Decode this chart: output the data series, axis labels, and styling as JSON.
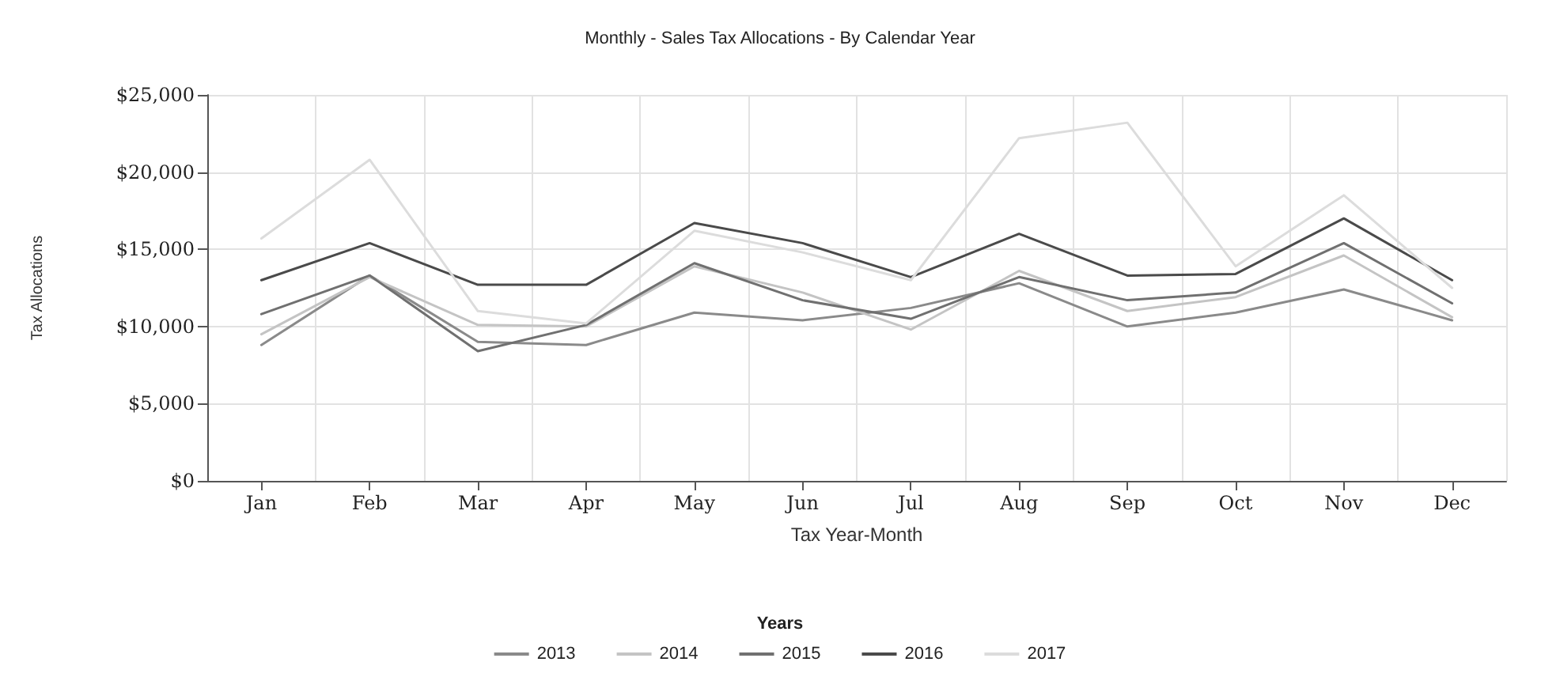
{
  "chart_data": {
    "type": "line",
    "title": "Monthly - Sales Tax Allocations - By Calendar Year",
    "xlabel": "Tax Year-Month",
    "ylabel": "Tax Allocations",
    "legend_title": "Years",
    "categories": [
      "Jan",
      "Feb",
      "Mar",
      "Apr",
      "May",
      "Jun",
      "Jul",
      "Aug",
      "Sep",
      "Oct",
      "Nov",
      "Dec"
    ],
    "series": [
      {
        "name": "2013",
        "color": "#8a8a8a",
        "values": [
          8800,
          13300,
          9000,
          8800,
          10900,
          10400,
          11200,
          12800,
          10000,
          10900,
          12400,
          10400
        ]
      },
      {
        "name": "2014",
        "color": "#c4c4c4",
        "values": [
          9500,
          13200,
          10100,
          10000,
          13900,
          12200,
          9800,
          13600,
          11000,
          11900,
          14600,
          10600
        ]
      },
      {
        "name": "2015",
        "color": "#707070",
        "values": [
          10800,
          13300,
          8400,
          10100,
          14100,
          11700,
          10500,
          13200,
          11700,
          12200,
          15400,
          11500
        ]
      },
      {
        "name": "2016",
        "color": "#4a4a4a",
        "values": [
          13000,
          15400,
          12700,
          12700,
          16700,
          15400,
          13200,
          16000,
          13300,
          13400,
          17000,
          13000
        ]
      },
      {
        "name": "2017",
        "color": "#dcdcdc",
        "values": [
          15700,
          20800,
          11000,
          10200,
          16200,
          14800,
          13000,
          22200,
          23200,
          13900,
          18500,
          12500
        ]
      }
    ],
    "ylim": [
      0,
      25000
    ],
    "yticks": [
      {
        "value": 0,
        "label": "$0"
      },
      {
        "value": 5000,
        "label": "$5,000"
      },
      {
        "value": 10000,
        "label": "$10,000"
      },
      {
        "value": 15000,
        "label": "$15,000"
      },
      {
        "value": 20000,
        "label": "$20,000"
      },
      {
        "value": 25000,
        "label": "$25,000"
      }
    ],
    "grid": true,
    "legend": "bottom",
    "marker": "none",
    "line_style": "solid"
  }
}
